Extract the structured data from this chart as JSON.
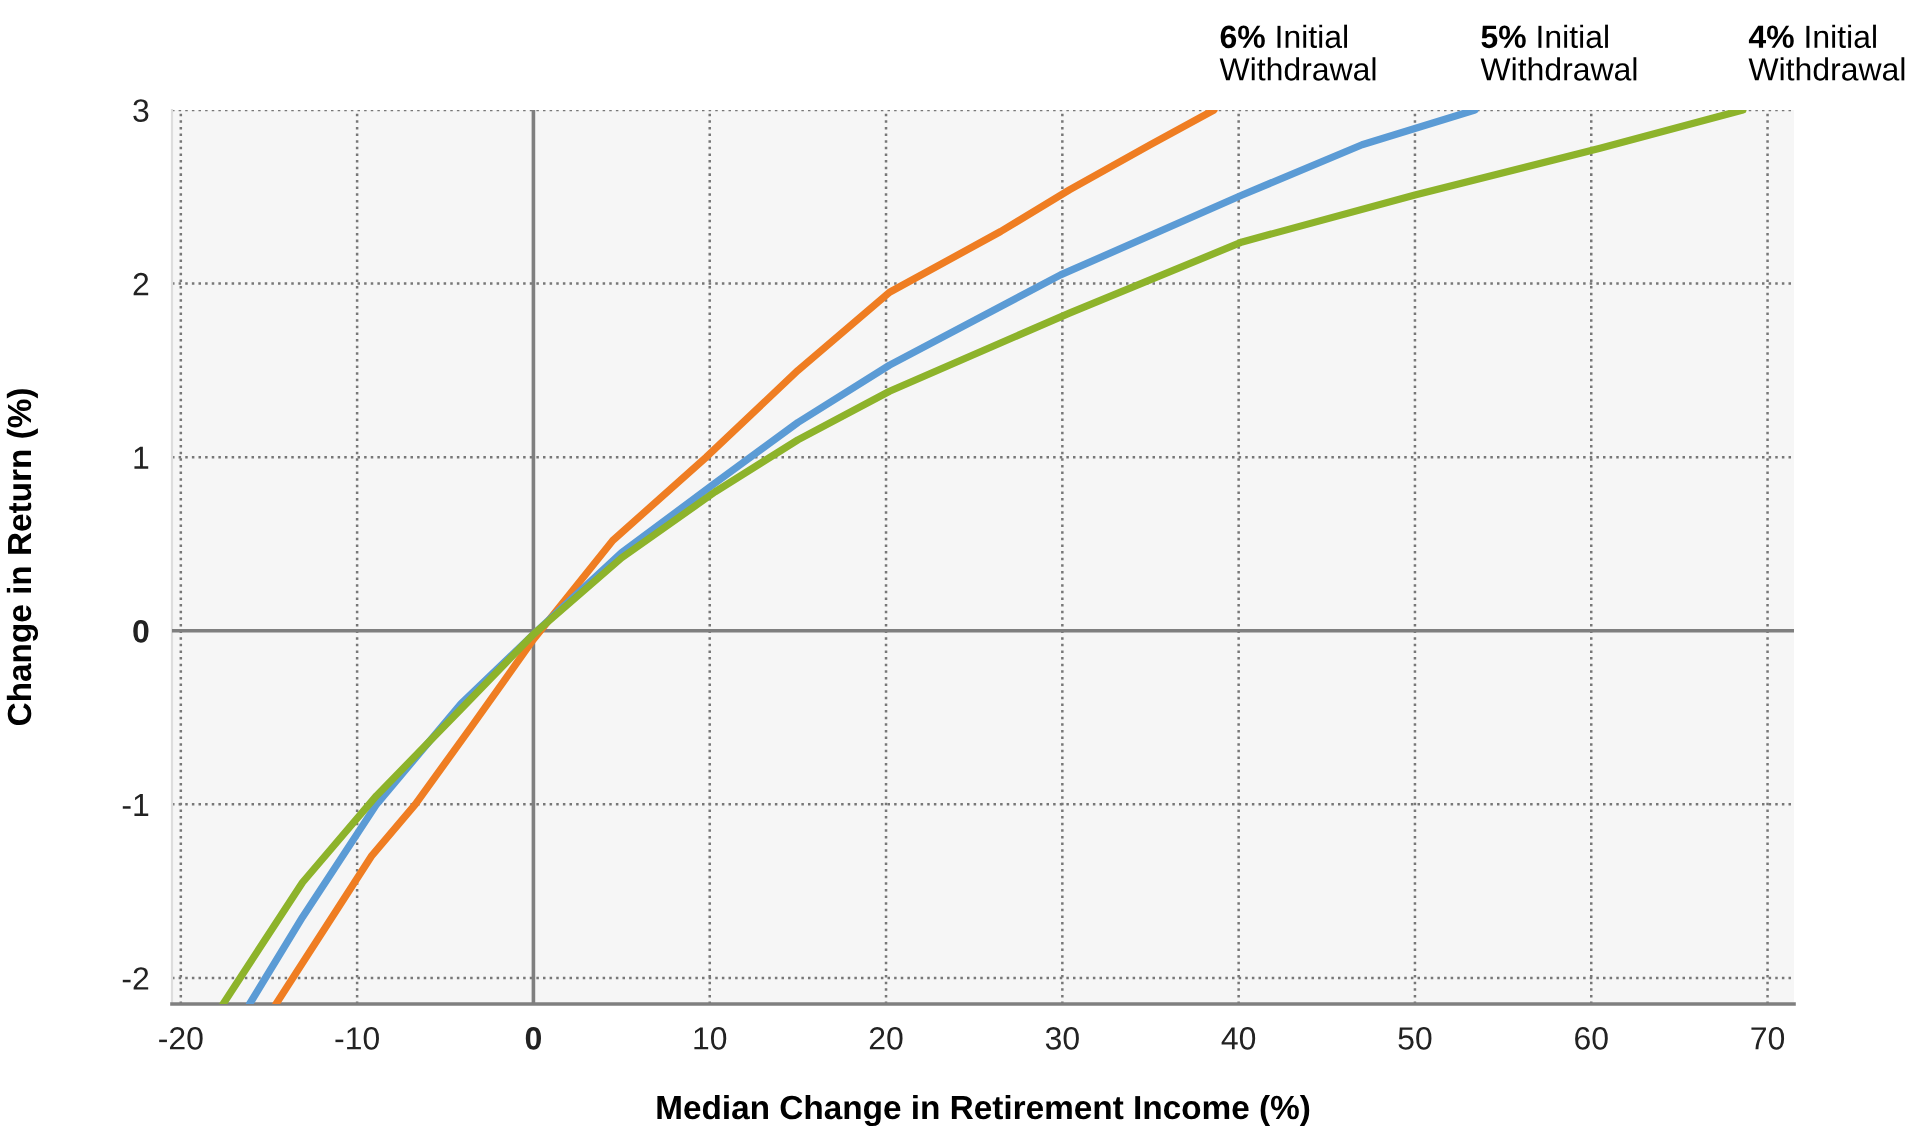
{
  "chart_data": {
    "type": "line",
    "xlabel": "Median Change in Retirement Income (%)",
    "ylabel": "Change in Return (%)",
    "series": [
      {
        "name": "6% Initial Withdrawal",
        "color": "#ef7d22",
        "x": [
          -14.6,
          -9.2,
          -6.7,
          -3.5,
          0,
          4.5,
          9.8,
          15,
          20.2,
          26.5,
          30.4,
          35,
          38.6
        ],
        "values": [
          -2.15,
          -1.3,
          -1.0,
          -0.55,
          -0.05,
          0.52,
          1.0,
          1.5,
          1.95,
          2.3,
          2.54,
          2.8,
          3.0
        ]
      },
      {
        "name": "5% Initial Withdrawal",
        "color": "#5b9bd5",
        "x": [
          -16.1,
          -13.1,
          -8.9,
          -4.1,
          0,
          5,
          10.3,
          15,
          20.2,
          29.9,
          40.2,
          47,
          53.4
        ],
        "values": [
          -2.15,
          -1.65,
          -1.0,
          -0.42,
          -0.02,
          0.45,
          0.85,
          1.2,
          1.53,
          2.05,
          2.51,
          2.8,
          3.0
        ]
      },
      {
        "name": "4% Initial Withdrawal",
        "color": "#8db32b",
        "x": [
          -17.6,
          -13.1,
          -8.9,
          -4.1,
          0,
          5,
          10.3,
          15,
          20.2,
          30.4,
          40.2,
          50,
          60.5,
          68.6
        ],
        "values": [
          -2.15,
          -1.45,
          -0.95,
          -0.45,
          -0.02,
          0.42,
          0.8,
          1.1,
          1.38,
          1.83,
          2.24,
          2.51,
          2.78,
          3.0
        ]
      }
    ],
    "xlim": [
      -20.5,
      71.5
    ],
    "ylim": [
      -2.15,
      3
    ],
    "xticks": [
      -20,
      -10,
      0,
      10,
      20,
      30,
      40,
      50,
      60,
      70
    ],
    "yticks": [
      -2,
      -1,
      0,
      1,
      2,
      3
    ],
    "grid": true,
    "marker": "none",
    "line_style": "solid"
  }
}
